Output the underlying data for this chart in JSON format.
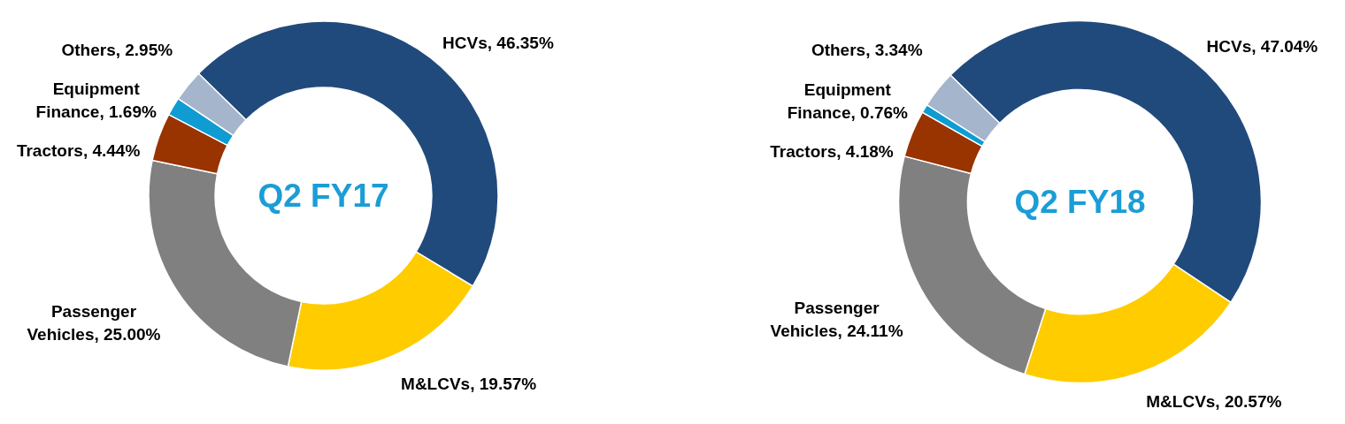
{
  "chart_data": [
    {
      "type": "donut",
      "title": "Q2 FY17",
      "categories": [
        "HCVs",
        "M&LCVs",
        "Passenger Vehicles",
        "Tractors",
        "Equipment Finance",
        "Others"
      ],
      "values": [
        46.35,
        19.57,
        25.0,
        4.44,
        1.69,
        2.95
      ],
      "colors": [
        "#214a7c",
        "#ffcc00",
        "#808080",
        "#993300",
        "#0e9cd2",
        "#a5b5cb"
      ],
      "value_labels": [
        "46.35%",
        "19.57%",
        "25.00%",
        "4.44%",
        "1.69%",
        "2.95%"
      ]
    },
    {
      "type": "donut",
      "title": "Q2 FY18",
      "categories": [
        "HCVs",
        "M&LCVs",
        "Passenger Vehicles",
        "Tractors",
        "Equipment Finance",
        "Others"
      ],
      "values": [
        47.04,
        20.57,
        24.11,
        4.18,
        0.76,
        3.34
      ],
      "colors": [
        "#214a7c",
        "#ffcc00",
        "#808080",
        "#993300",
        "#0e9cd2",
        "#a5b5cb"
      ],
      "value_labels": [
        "47.04%",
        "20.57%",
        "24.11%",
        "4.18%",
        "0.76%",
        "3.34%"
      ]
    }
  ]
}
